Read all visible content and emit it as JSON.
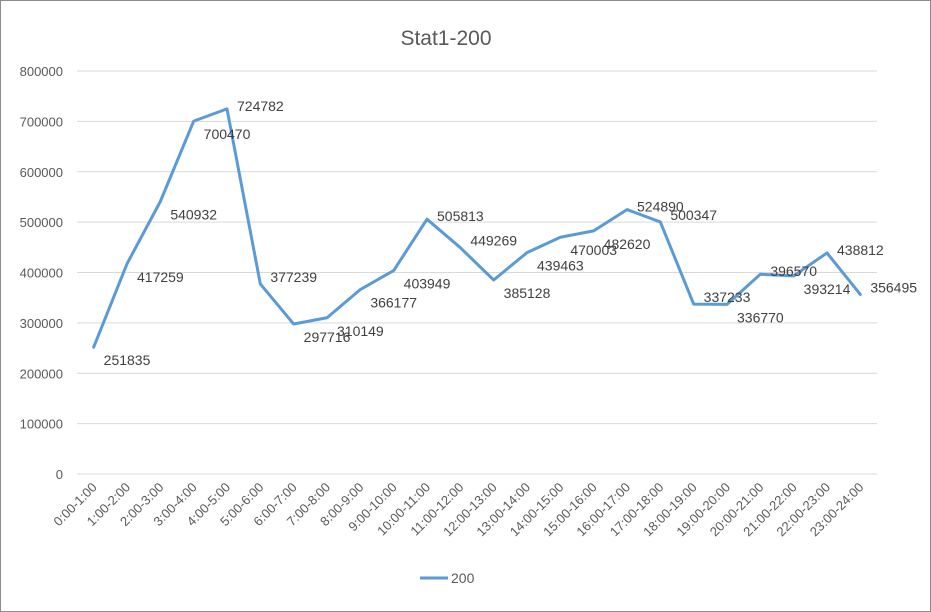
{
  "chart_data": {
    "type": "line",
    "title": "Stat1-200",
    "xlabel": "",
    "ylabel": "",
    "ylim": [
      0,
      800000
    ],
    "yticks": [
      0,
      100000,
      200000,
      300000,
      400000,
      500000,
      600000,
      700000,
      800000
    ],
    "grid": true,
    "legend_position": "bottom",
    "categories": [
      "0:00-1:00",
      "1:00-2:00",
      "2:00-3:00",
      "3:00-4:00",
      "4:00-5:00",
      "5:00-6:00",
      "6:00-7:00",
      "7:00-8:00",
      "8:00-9:00",
      "9:00-10:00",
      "10:00-11:00",
      "11:00-12:00",
      "12:00-13:00",
      "13:00-14:00",
      "14:00-15:00",
      "15:00-16:00",
      "16:00-17:00",
      "17:00-18:00",
      "18:00-19:00",
      "19:00-20:00",
      "20:00-21:00",
      "21:00-22:00",
      "22:00-23:00",
      "23:00-24:00"
    ],
    "series": [
      {
        "name": "200",
        "color": "#5b9bd5",
        "values": [
          251835,
          417259,
          540932,
          700470,
          724782,
          377239,
          297716,
          310149,
          366177,
          403949,
          505813,
          449269,
          385128,
          439463,
          470003,
          482620,
          524890,
          500347,
          337233,
          336770,
          396570,
          393214,
          438812,
          356495
        ]
      }
    ]
  }
}
